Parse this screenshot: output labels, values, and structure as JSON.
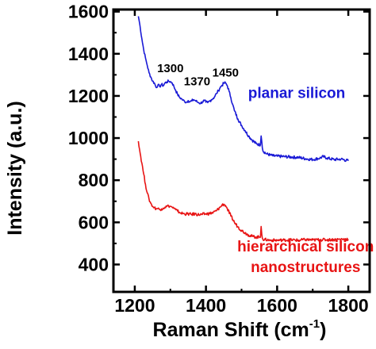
{
  "chart_data": {
    "type": "line",
    "xlabel": "Raman Shift (cm",
    "xlabel_superscript": "-1",
    "xlabel_suffix": ")",
    "ylabel": "Intensity (a.u.)",
    "xlim": [
      1140,
      1860
    ],
    "ylim": [
      270,
      1610
    ],
    "xticks": [
      1200,
      1400,
      1600,
      1800
    ],
    "yticks": [
      400,
      600,
      800,
      1000,
      1200,
      1400,
      1600
    ],
    "grid": false,
    "annotations": [
      {
        "text": "1300",
        "x": 1300,
        "y": 1312
      },
      {
        "text": "1370",
        "x": 1375,
        "y": 1250
      },
      {
        "text": "1450",
        "x": 1455,
        "y": 1292
      }
    ],
    "series": [
      {
        "name": "planar silicon",
        "color": "#1a1ad6",
        "points": [
          [
            1210,
            1578
          ],
          [
            1215,
            1530
          ],
          [
            1220,
            1470
          ],
          [
            1225,
            1420
          ],
          [
            1230,
            1380
          ],
          [
            1235,
            1345
          ],
          [
            1240,
            1310
          ],
          [
            1245,
            1290
          ],
          [
            1250,
            1270
          ],
          [
            1255,
            1262
          ],
          [
            1260,
            1240
          ],
          [
            1265,
            1252
          ],
          [
            1270,
            1244
          ],
          [
            1275,
            1255
          ],
          [
            1280,
            1248
          ],
          [
            1285,
            1262
          ],
          [
            1290,
            1266
          ],
          [
            1295,
            1270
          ],
          [
            1300,
            1268
          ],
          [
            1305,
            1262
          ],
          [
            1310,
            1244
          ],
          [
            1315,
            1226
          ],
          [
            1320,
            1208
          ],
          [
            1325,
            1195
          ],
          [
            1330,
            1188
          ],
          [
            1335,
            1180
          ],
          [
            1340,
            1174
          ],
          [
            1345,
            1170
          ],
          [
            1350,
            1178
          ],
          [
            1355,
            1172
          ],
          [
            1360,
            1176
          ],
          [
            1365,
            1182
          ],
          [
            1370,
            1178
          ],
          [
            1375,
            1172
          ],
          [
            1380,
            1168
          ],
          [
            1385,
            1165
          ],
          [
            1390,
            1172
          ],
          [
            1395,
            1178
          ],
          [
            1400,
            1170
          ],
          [
            1405,
            1168
          ],
          [
            1410,
            1175
          ],
          [
            1415,
            1182
          ],
          [
            1420,
            1188
          ],
          [
            1425,
            1198
          ],
          [
            1430,
            1212
          ],
          [
            1435,
            1225
          ],
          [
            1440,
            1240
          ],
          [
            1445,
            1250
          ],
          [
            1450,
            1260
          ],
          [
            1455,
            1262
          ],
          [
            1460,
            1248
          ],
          [
            1465,
            1222
          ],
          [
            1470,
            1192
          ],
          [
            1475,
            1160
          ],
          [
            1480,
            1130
          ],
          [
            1490,
            1090
          ],
          [
            1500,
            1060
          ],
          [
            1510,
            1035
          ],
          [
            1520,
            1010
          ],
          [
            1530,
            990
          ],
          [
            1540,
            975
          ],
          [
            1550,
            968
          ],
          [
            1553,
            968
          ],
          [
            1555,
            1010
          ],
          [
            1557,
            980
          ],
          [
            1560,
            940
          ],
          [
            1570,
            925
          ],
          [
            1580,
            920
          ],
          [
            1590,
            915
          ],
          [
            1600,
            914
          ],
          [
            1620,
            912
          ],
          [
            1640,
            910
          ],
          [
            1660,
            908
          ],
          [
            1680,
            902
          ],
          [
            1700,
            898
          ],
          [
            1720,
            905
          ],
          [
            1730,
            912
          ],
          [
            1740,
            905
          ],
          [
            1760,
            898
          ],
          [
            1780,
            900
          ],
          [
            1800,
            892
          ]
        ]
      },
      {
        "name": "hierarchical silicon nanostructures",
        "color": "#e81414",
        "points": [
          [
            1210,
            985
          ],
          [
            1215,
            930
          ],
          [
            1220,
            880
          ],
          [
            1225,
            830
          ],
          [
            1230,
            780
          ],
          [
            1235,
            740
          ],
          [
            1240,
            710
          ],
          [
            1245,
            690
          ],
          [
            1250,
            676
          ],
          [
            1255,
            670
          ],
          [
            1260,
            665
          ],
          [
            1265,
            666
          ],
          [
            1270,
            660
          ],
          [
            1275,
            664
          ],
          [
            1280,
            668
          ],
          [
            1285,
            672
          ],
          [
            1290,
            676
          ],
          [
            1295,
            678
          ],
          [
            1300,
            676
          ],
          [
            1305,
            672
          ],
          [
            1310,
            666
          ],
          [
            1315,
            660
          ],
          [
            1320,
            654
          ],
          [
            1325,
            648
          ],
          [
            1330,
            644
          ],
          [
            1340,
            640
          ],
          [
            1350,
            640
          ],
          [
            1360,
            638
          ],
          [
            1370,
            640
          ],
          [
            1380,
            636
          ],
          [
            1390,
            638
          ],
          [
            1400,
            640
          ],
          [
            1410,
            642
          ],
          [
            1420,
            646
          ],
          [
            1430,
            656
          ],
          [
            1440,
            672
          ],
          [
            1445,
            682
          ],
          [
            1450,
            686
          ],
          [
            1455,
            680
          ],
          [
            1460,
            664
          ],
          [
            1470,
            630
          ],
          [
            1480,
            600
          ],
          [
            1490,
            578
          ],
          [
            1500,
            562
          ],
          [
            1510,
            550
          ],
          [
            1520,
            540
          ],
          [
            1530,
            534
          ],
          [
            1540,
            530
          ],
          [
            1550,
            530
          ],
          [
            1553,
            530
          ],
          [
            1555,
            580
          ],
          [
            1557,
            540
          ],
          [
            1560,
            520
          ],
          [
            1580,
            515
          ],
          [
            1600,
            515
          ],
          [
            1620,
            516
          ],
          [
            1640,
            517
          ],
          [
            1660,
            515
          ],
          [
            1680,
            518
          ],
          [
            1700,
            516
          ],
          [
            1720,
            518
          ],
          [
            1740,
            517
          ],
          [
            1760,
            518
          ],
          [
            1780,
            520
          ],
          [
            1800,
            520
          ]
        ]
      }
    ],
    "series_labels": [
      {
        "lines": [
          "planar silicon"
        ],
        "x": 1655,
        "y": 1190,
        "color": "#1a1ad6"
      },
      {
        "lines": [
          "hierarchical silicon",
          "nanostructures"
        ],
        "x": 1680,
        "y": 462,
        "color": "#e81414"
      }
    ]
  }
}
